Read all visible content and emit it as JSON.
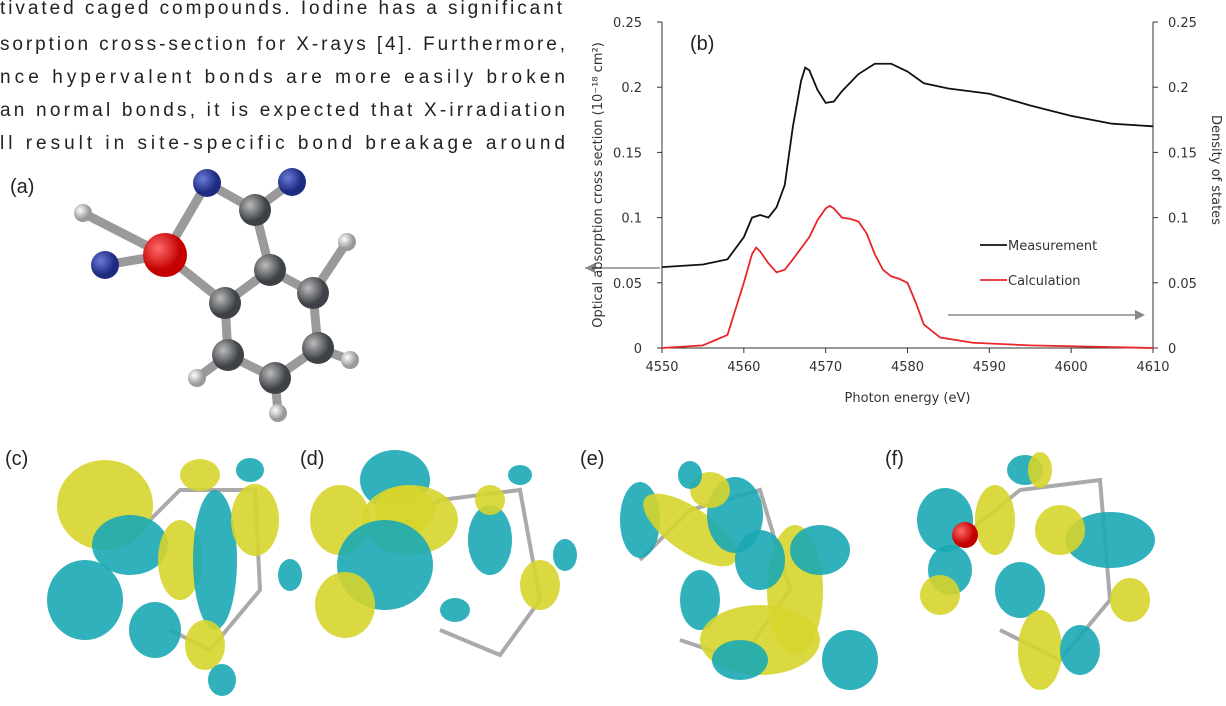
{
  "text_lines": [
    "tivated caged compounds. Iodine has a significant",
    "sorption cross-section for X-rays [4]. Furthermore,",
    "nce hypervalent bonds are more easily broken",
    "an normal bonds, it is expected that X-irradiation",
    "ll result in site-specific bond breakage around"
  ],
  "panel_labels": {
    "a": "(a)",
    "c": "(c)",
    "d": "(d)",
    "e": "(e)",
    "f": "(f)"
  },
  "chart_data": {
    "type": "line",
    "annotation": "(b)",
    "xlabel": "Photon energy (eV)",
    "ylabel": "Optical absorption cross section (10⁻¹⁸ cm²)",
    "y2label": "Density of states",
    "xlim": [
      4550,
      4610
    ],
    "xticks": [
      4550,
      4560,
      4570,
      4580,
      4590,
      4600,
      4610
    ],
    "ylim": [
      0,
      0.25
    ],
    "yticks": [
      0,
      0.05,
      0.1,
      0.15,
      0.2,
      0.25
    ],
    "y2lim": [
      0,
      0.25
    ],
    "y2ticks": [
      0,
      0.05,
      0.1,
      0.15,
      0.2,
      0.25
    ],
    "legend": "right",
    "grid": false,
    "series": [
      {
        "name": "Measurement",
        "color": "#111111",
        "x": [
          4550,
          4555,
          4558,
          4560,
          4561,
          4562,
          4563,
          4564,
          4565,
          4566,
          4567,
          4567.5,
          4568,
          4569,
          4570,
          4571,
          4572,
          4574,
          4576,
          4578,
          4580,
          4582,
          4585,
          4590,
          4595,
          4600,
          4605,
          4610
        ],
        "values": [
          0.062,
          0.064,
          0.068,
          0.085,
          0.1,
          0.102,
          0.1,
          0.108,
          0.125,
          0.17,
          0.205,
          0.215,
          0.213,
          0.198,
          0.188,
          0.189,
          0.197,
          0.21,
          0.218,
          0.218,
          0.212,
          0.203,
          0.199,
          0.195,
          0.186,
          0.178,
          0.172,
          0.17
        ]
      },
      {
        "name": "Calculation",
        "color": "#e8262a",
        "axis": "y2",
        "x": [
          4550,
          4555,
          4558,
          4560,
          4561,
          4561.5,
          4562,
          4563,
          4564,
          4565,
          4566,
          4568,
          4569,
          4570,
          4570.5,
          4571,
          4572,
          4573,
          4574,
          4575,
          4576,
          4577,
          4578,
          4579,
          4580,
          4581,
          4582,
          4584,
          4588,
          4595,
          4610
        ],
        "values": [
          0,
          0.002,
          0.01,
          0.05,
          0.072,
          0.077,
          0.074,
          0.065,
          0.058,
          0.06,
          0.068,
          0.085,
          0.098,
          0.107,
          0.109,
          0.107,
          0.1,
          0.099,
          0.097,
          0.088,
          0.072,
          0.06,
          0.055,
          0.053,
          0.05,
          0.035,
          0.018,
          0.008,
          0.004,
          0.002,
          0
        ]
      }
    ]
  }
}
